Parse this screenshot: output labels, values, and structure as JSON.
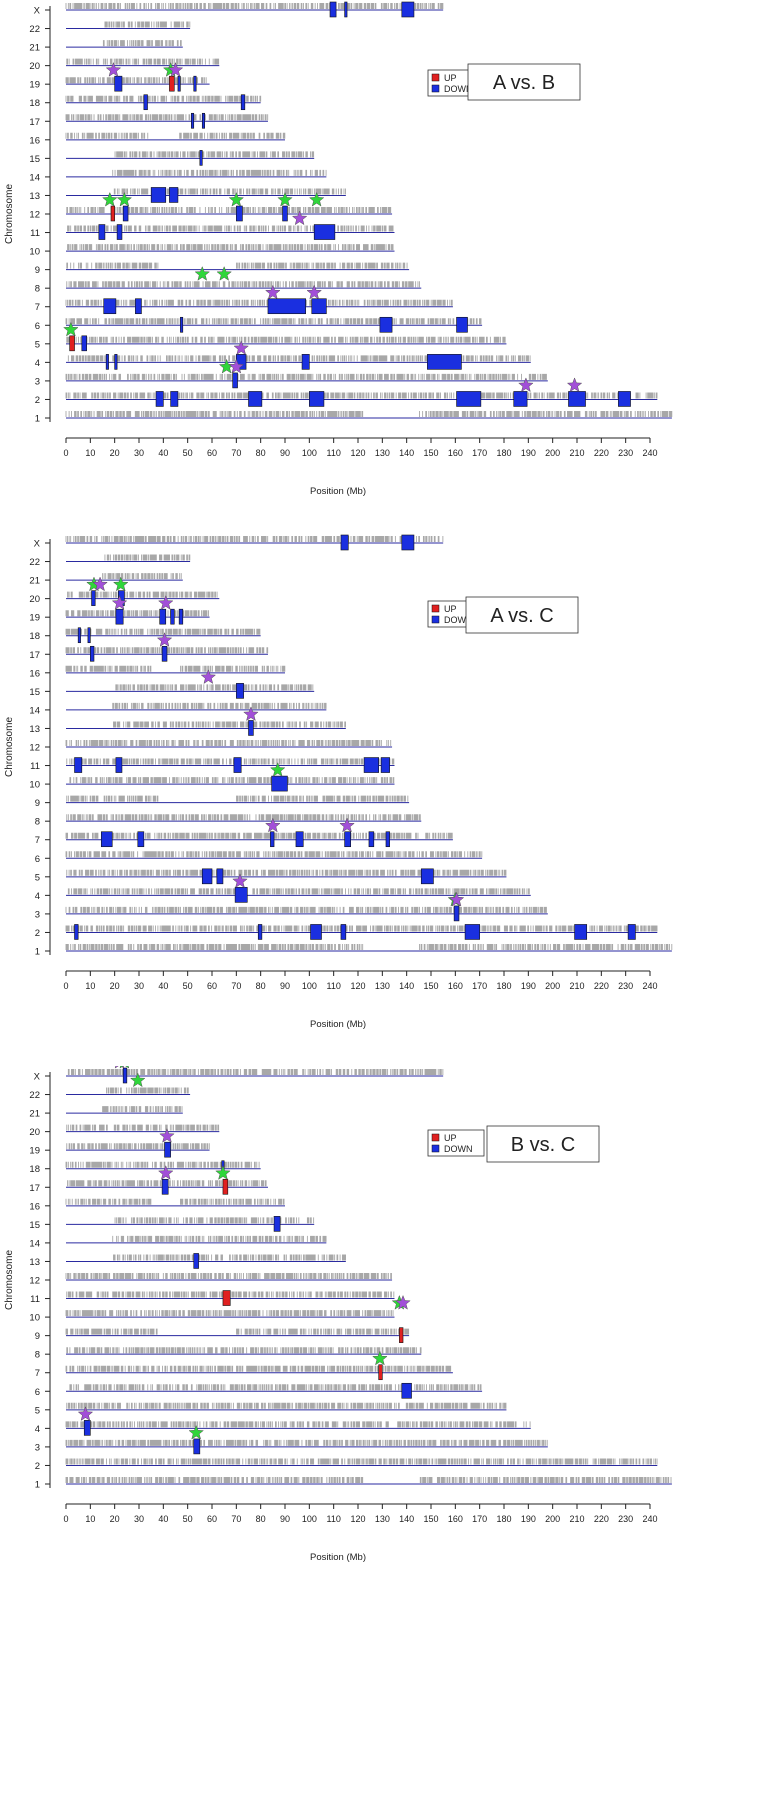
{
  "colors": {
    "up": "#e02020",
    "down": "#1a2fe0",
    "chromosome_line": "#2a2aa0",
    "probe": "#a8a8a8",
    "star_green": "#2fd63a",
    "star_purple": "#a24fd8",
    "axis": "#222222"
  },
  "chart_data": [
    {
      "type": "ideogram",
      "title": "A vs. B",
      "xlabel": "Position (Mb)",
      "ylabel": "Chromosome",
      "xlim": [
        0,
        240
      ],
      "x_ticks": [
        0,
        10,
        20,
        30,
        40,
        50,
        60,
        70,
        80,
        90,
        100,
        110,
        120,
        130,
        140,
        150,
        160,
        170,
        180,
        190,
        200,
        210,
        220,
        230,
        240
      ],
      "chromosomes": [
        "1",
        "2",
        "3",
        "4",
        "5",
        "6",
        "7",
        "8",
        "9",
        "10",
        "11",
        "12",
        "13",
        "14",
        "15",
        "16",
        "17",
        "18",
        "19",
        "20",
        "21",
        "22",
        "X"
      ],
      "legend": [
        {
          "label": "UP",
          "color": "up"
        },
        {
          "label": "DOWN",
          "color": "down"
        }
      ],
      "legend_position": "top-right",
      "regions": [
        {
          "chr": "X",
          "start": 108.5,
          "end": 111,
          "dir": "down"
        },
        {
          "chr": "X",
          "start": 114.5,
          "end": 115.5,
          "dir": "down"
        },
        {
          "chr": "X",
          "start": 138,
          "end": 143,
          "dir": "down"
        },
        {
          "chr": "19",
          "start": 20,
          "end": 23,
          "dir": "down"
        },
        {
          "chr": "19",
          "start": 42.5,
          "end": 44.5,
          "dir": "up"
        },
        {
          "chr": "19",
          "start": 46,
          "end": 47,
          "dir": "down"
        },
        {
          "chr": "19",
          "start": 52.5,
          "end": 53.5,
          "dir": "down"
        },
        {
          "chr": "18",
          "start": 32,
          "end": 33.5,
          "dir": "down"
        },
        {
          "chr": "18",
          "start": 72,
          "end": 73.5,
          "dir": "down"
        },
        {
          "chr": "17",
          "start": 51.5,
          "end": 52.5,
          "dir": "down"
        },
        {
          "chr": "17",
          "start": 56,
          "end": 57,
          "dir": "down"
        },
        {
          "chr": "15",
          "start": 55,
          "end": 56,
          "dir": "down"
        },
        {
          "chr": "13",
          "start": 35,
          "end": 41,
          "dir": "down"
        },
        {
          "chr": "13",
          "start": 42.5,
          "end": 46,
          "dir": "down"
        },
        {
          "chr": "12",
          "start": 18.5,
          "end": 20,
          "dir": "up"
        },
        {
          "chr": "12",
          "start": 23.5,
          "end": 25.5,
          "dir": "down"
        },
        {
          "chr": "12",
          "start": 70,
          "end": 72.5,
          "dir": "down"
        },
        {
          "chr": "12",
          "start": 89,
          "end": 91,
          "dir": "down"
        },
        {
          "chr": "11",
          "start": 13.5,
          "end": 16,
          "dir": "down"
        },
        {
          "chr": "11",
          "start": 21,
          "end": 23,
          "dir": "down"
        },
        {
          "chr": "11",
          "start": 102,
          "end": 110.5,
          "dir": "down"
        },
        {
          "chr": "7",
          "start": 15.5,
          "end": 20.5,
          "dir": "down"
        },
        {
          "chr": "7",
          "start": 28.5,
          "end": 31,
          "dir": "down"
        },
        {
          "chr": "7",
          "start": 83,
          "end": 98.5,
          "dir": "down"
        },
        {
          "chr": "7",
          "start": 101,
          "end": 107,
          "dir": "down"
        },
        {
          "chr": "6",
          "start": 47,
          "end": 48,
          "dir": "down"
        },
        {
          "chr": "6",
          "start": 129,
          "end": 134,
          "dir": "down"
        },
        {
          "chr": "6",
          "start": 160.5,
          "end": 165,
          "dir": "down"
        },
        {
          "chr": "5",
          "start": 1.5,
          "end": 3.5,
          "dir": "up"
        },
        {
          "chr": "5",
          "start": 6.5,
          "end": 8.5,
          "dir": "down"
        },
        {
          "chr": "4",
          "start": 16.5,
          "end": 17.5,
          "dir": "down"
        },
        {
          "chr": "4",
          "start": 20,
          "end": 21,
          "dir": "down"
        },
        {
          "chr": "4",
          "start": 70,
          "end": 74,
          "dir": "down"
        },
        {
          "chr": "4",
          "start": 97,
          "end": 100,
          "dir": "down"
        },
        {
          "chr": "4",
          "start": 148.5,
          "end": 162.5,
          "dir": "down"
        },
        {
          "chr": "3",
          "start": 68.5,
          "end": 70.5,
          "dir": "down"
        },
        {
          "chr": "2",
          "start": 37,
          "end": 40,
          "dir": "down"
        },
        {
          "chr": "2",
          "start": 43,
          "end": 46,
          "dir": "down"
        },
        {
          "chr": "2",
          "start": 75,
          "end": 80.5,
          "dir": "down"
        },
        {
          "chr": "2",
          "start": 100,
          "end": 106,
          "dir": "down"
        },
        {
          "chr": "2",
          "start": 160.5,
          "end": 170.5,
          "dir": "down"
        },
        {
          "chr": "2",
          "start": 184,
          "end": 189.5,
          "dir": "down"
        },
        {
          "chr": "2",
          "start": 206.5,
          "end": 213.5,
          "dir": "down"
        },
        {
          "chr": "2",
          "start": 227,
          "end": 232,
          "dir": "down"
        }
      ],
      "stars": [
        {
          "chr": "19",
          "pos": 19.5,
          "color": "purple"
        },
        {
          "chr": "19",
          "pos": 43,
          "color": "green"
        },
        {
          "chr": "19",
          "pos": 45,
          "color": "purple"
        },
        {
          "chr": "12",
          "pos": 18,
          "color": "green"
        },
        {
          "chr": "12",
          "pos": 24,
          "color": "green"
        },
        {
          "chr": "12",
          "pos": 70,
          "color": "green"
        },
        {
          "chr": "12",
          "pos": 90,
          "color": "green"
        },
        {
          "chr": "12",
          "pos": 103,
          "color": "green"
        },
        {
          "chr": "11",
          "pos": 96,
          "color": "purple"
        },
        {
          "chr": "8",
          "pos": 56,
          "color": "green"
        },
        {
          "chr": "8",
          "pos": 65,
          "color": "green"
        },
        {
          "chr": "7",
          "pos": 85,
          "color": "purple"
        },
        {
          "chr": "7",
          "pos": 102,
          "color": "purple"
        },
        {
          "chr": "5",
          "pos": 2,
          "color": "green"
        },
        {
          "chr": "4",
          "pos": 72,
          "color": "purple"
        },
        {
          "chr": "3",
          "pos": 66,
          "color": "green"
        },
        {
          "chr": "3",
          "pos": 70,
          "color": "purple"
        },
        {
          "chr": "2",
          "pos": 189,
          "color": "purple"
        },
        {
          "chr": "2",
          "pos": 209,
          "color": "purple"
        }
      ]
    },
    {
      "type": "ideogram",
      "title": "A vs. C",
      "xlabel": "Position (Mb)",
      "ylabel": "Chromosome",
      "xlim": [
        0,
        240
      ],
      "x_ticks": [
        0,
        10,
        20,
        30,
        40,
        50,
        60,
        70,
        80,
        90,
        100,
        110,
        120,
        130,
        140,
        150,
        160,
        170,
        180,
        190,
        200,
        210,
        220,
        230,
        240
      ],
      "chromosomes": [
        "1",
        "2",
        "3",
        "4",
        "5",
        "6",
        "7",
        "8",
        "9",
        "10",
        "11",
        "12",
        "13",
        "14",
        "15",
        "16",
        "17",
        "18",
        "19",
        "20",
        "21",
        "22",
        "X"
      ],
      "legend": [
        {
          "label": "UP",
          "color": "up"
        },
        {
          "label": "DOWN",
          "color": "down"
        }
      ],
      "legend_position": "top-right",
      "regions": [
        {
          "chr": "X",
          "start": 113,
          "end": 116,
          "dir": "down"
        },
        {
          "chr": "X",
          "start": 138,
          "end": 143,
          "dir": "down"
        },
        {
          "chr": "20",
          "start": 10.5,
          "end": 12,
          "dir": "down"
        },
        {
          "chr": "20",
          "start": 21.5,
          "end": 24,
          "dir": "down"
        },
        {
          "chr": "19",
          "start": 20.5,
          "end": 23.5,
          "dir": "down"
        },
        {
          "chr": "19",
          "start": 38.5,
          "end": 41,
          "dir": "down"
        },
        {
          "chr": "19",
          "start": 43,
          "end": 44.5,
          "dir": "down"
        },
        {
          "chr": "19",
          "start": 46.5,
          "end": 48,
          "dir": "down"
        },
        {
          "chr": "18",
          "start": 5,
          "end": 6,
          "dir": "down"
        },
        {
          "chr": "18",
          "start": 9,
          "end": 10,
          "dir": "down"
        },
        {
          "chr": "17",
          "start": 10,
          "end": 11.5,
          "dir": "down"
        },
        {
          "chr": "17",
          "start": 39.5,
          "end": 41.5,
          "dir": "down"
        },
        {
          "chr": "15",
          "start": 70,
          "end": 73,
          "dir": "down"
        },
        {
          "chr": "13",
          "start": 75,
          "end": 77,
          "dir": "down"
        },
        {
          "chr": "11",
          "start": 3.5,
          "end": 6.5,
          "dir": "down"
        },
        {
          "chr": "11",
          "start": 20.5,
          "end": 23,
          "dir": "down"
        },
        {
          "chr": "11",
          "start": 69,
          "end": 72,
          "dir": "down"
        },
        {
          "chr": "11",
          "start": 122.5,
          "end": 128.5,
          "dir": "down"
        },
        {
          "chr": "11",
          "start": 129.5,
          "end": 133,
          "dir": "down"
        },
        {
          "chr": "10",
          "start": 84.5,
          "end": 91,
          "dir": "down"
        },
        {
          "chr": "7",
          "start": 14.5,
          "end": 19,
          "dir": "down"
        },
        {
          "chr": "7",
          "start": 29.5,
          "end": 32,
          "dir": "down"
        },
        {
          "chr": "7",
          "start": 84,
          "end": 85.5,
          "dir": "down"
        },
        {
          "chr": "7",
          "start": 94.5,
          "end": 97.5,
          "dir": "down"
        },
        {
          "chr": "7",
          "start": 114.5,
          "end": 117,
          "dir": "down"
        },
        {
          "chr": "7",
          "start": 124.5,
          "end": 126.5,
          "dir": "down"
        },
        {
          "chr": "7",
          "start": 131.5,
          "end": 133,
          "dir": "down"
        },
        {
          "chr": "5",
          "start": 56,
          "end": 60,
          "dir": "down"
        },
        {
          "chr": "5",
          "start": 62,
          "end": 64.5,
          "dir": "down"
        },
        {
          "chr": "5",
          "start": 146,
          "end": 151,
          "dir": "down"
        },
        {
          "chr": "4",
          "start": 69.5,
          "end": 74.5,
          "dir": "down"
        },
        {
          "chr": "3",
          "start": 159.5,
          "end": 161.5,
          "dir": "down"
        },
        {
          "chr": "2",
          "start": 3.5,
          "end": 5,
          "dir": "down"
        },
        {
          "chr": "2",
          "start": 79,
          "end": 80.5,
          "dir": "down"
        },
        {
          "chr": "2",
          "start": 100.5,
          "end": 105,
          "dir": "down"
        },
        {
          "chr": "2",
          "start": 113,
          "end": 115,
          "dir": "down"
        },
        {
          "chr": "2",
          "start": 164,
          "end": 170,
          "dir": "down"
        },
        {
          "chr": "2",
          "start": 209,
          "end": 214,
          "dir": "down"
        },
        {
          "chr": "2",
          "start": 231,
          "end": 234,
          "dir": "down"
        }
      ],
      "stars": [
        {
          "chr": "20",
          "pos": 11.5,
          "color": "green"
        },
        {
          "chr": "20",
          "pos": 14,
          "color": "purple"
        },
        {
          "chr": "20",
          "pos": 22.5,
          "color": "green"
        },
        {
          "chr": "19",
          "pos": 22,
          "color": "purple"
        },
        {
          "chr": "19",
          "pos": 41,
          "color": "purple"
        },
        {
          "chr": "17",
          "pos": 40.5,
          "color": "purple"
        },
        {
          "chr": "15",
          "pos": 58.5,
          "color": "purple"
        },
        {
          "chr": "13",
          "pos": 76,
          "color": "purple"
        },
        {
          "chr": "10",
          "pos": 87,
          "color": "green"
        },
        {
          "chr": "7",
          "pos": 85,
          "color": "purple"
        },
        {
          "chr": "7",
          "pos": 115.5,
          "color": "purple"
        },
        {
          "chr": "4",
          "pos": 71.5,
          "color": "purple"
        },
        {
          "chr": "3",
          "pos": 160,
          "color": "green"
        },
        {
          "chr": "3",
          "pos": 160.5,
          "color": "purple"
        }
      ]
    },
    {
      "type": "ideogram",
      "title": "B vs. C",
      "xlabel": "Position (Mb)",
      "ylabel": "Chromosome",
      "xlim": [
        0,
        240
      ],
      "x_ticks": [
        0,
        10,
        20,
        30,
        40,
        50,
        60,
        70,
        80,
        90,
        100,
        110,
        120,
        130,
        140,
        150,
        160,
        170,
        180,
        190,
        200,
        210,
        220,
        230,
        240
      ],
      "chromosomes": [
        "1",
        "2",
        "3",
        "4",
        "5",
        "6",
        "7",
        "8",
        "9",
        "10",
        "11",
        "12",
        "13",
        "14",
        "15",
        "16",
        "17",
        "18",
        "19",
        "20",
        "21",
        "22",
        "X"
      ],
      "legend": [
        {
          "label": "UP",
          "color": "up"
        },
        {
          "label": "DOWN",
          "color": "down"
        }
      ],
      "legend_position": "top-right",
      "regions": [
        {
          "chr": "X",
          "start": 23.5,
          "end": 25,
          "dir": "down"
        },
        {
          "chr": "19",
          "start": 40.5,
          "end": 43,
          "dir": "down"
        },
        {
          "chr": "18",
          "start": 64,
          "end": 65,
          "dir": "down"
        },
        {
          "chr": "17",
          "start": 39.5,
          "end": 42,
          "dir": "down"
        },
        {
          "chr": "17",
          "start": 64.5,
          "end": 66.5,
          "dir": "up"
        },
        {
          "chr": "15",
          "start": 85.5,
          "end": 88,
          "dir": "down"
        },
        {
          "chr": "13",
          "start": 52.5,
          "end": 54.5,
          "dir": "down"
        },
        {
          "chr": "11",
          "start": 64.5,
          "end": 67.5,
          "dir": "up"
        },
        {
          "chr": "9",
          "start": 137,
          "end": 138.5,
          "dir": "up"
        },
        {
          "chr": "7",
          "start": 128.5,
          "end": 130,
          "dir": "up"
        },
        {
          "chr": "6",
          "start": 138,
          "end": 142,
          "dir": "down"
        },
        {
          "chr": "4",
          "start": 7.5,
          "end": 10,
          "dir": "down"
        },
        {
          "chr": "3",
          "start": 52.5,
          "end": 55,
          "dir": "down"
        }
      ],
      "stars": [
        {
          "chr": "X",
          "pos": 22,
          "color": "purple"
        },
        {
          "chr": "X",
          "pos": 24,
          "color": "green"
        },
        {
          "chr": "22",
          "pos": 29.5,
          "color": "green"
        },
        {
          "chr": "19",
          "pos": 41.5,
          "color": "purple"
        },
        {
          "chr": "17",
          "pos": 41,
          "color": "purple"
        },
        {
          "chr": "17",
          "pos": 64.5,
          "color": "green"
        },
        {
          "chr": "10",
          "pos": 137,
          "color": "green"
        },
        {
          "chr": "10",
          "pos": 138.5,
          "color": "purple"
        },
        {
          "chr": "7",
          "pos": 129,
          "color": "green"
        },
        {
          "chr": "4",
          "pos": 8,
          "color": "purple"
        },
        {
          "chr": "3",
          "pos": 53.5,
          "color": "green"
        }
      ]
    }
  ]
}
